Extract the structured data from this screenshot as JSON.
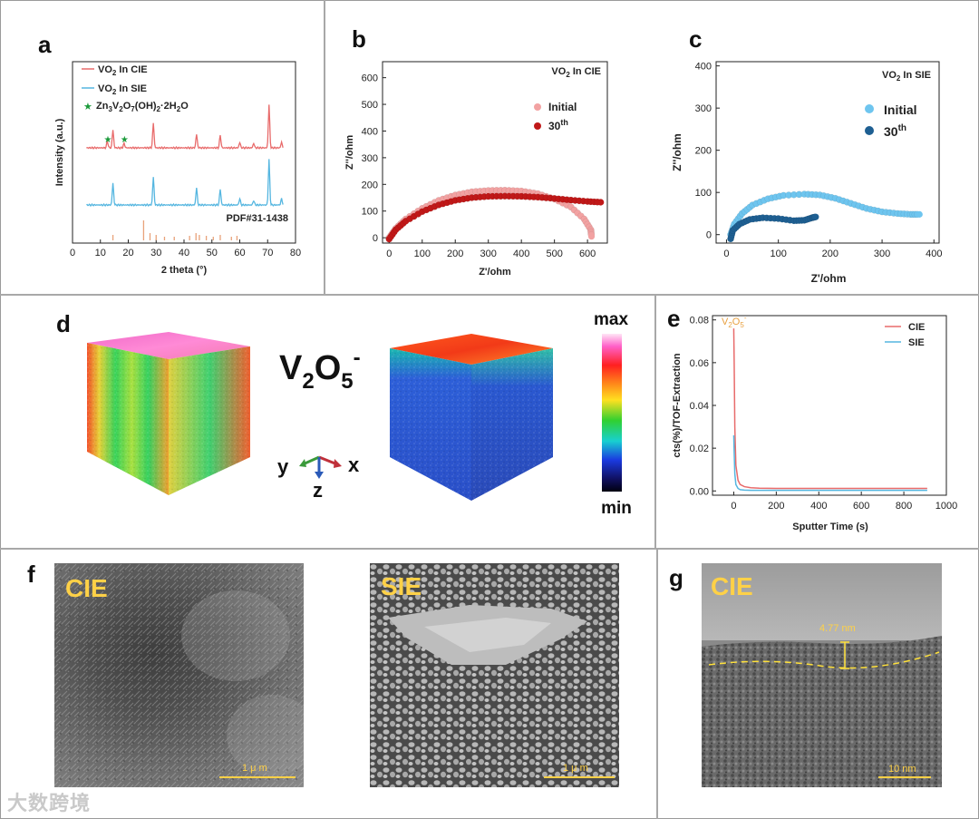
{
  "panels": {
    "a": {
      "label": "a"
    },
    "b": {
      "label": "b"
    },
    "c": {
      "label": "c"
    },
    "d": {
      "label": "d"
    },
    "e": {
      "label": "e"
    },
    "f": {
      "label": "f"
    },
    "g": {
      "label": "g"
    }
  },
  "colors": {
    "cie": "#e86b6b",
    "sie": "#55b6e0",
    "star": "#1a9a3a",
    "pdf_tick": "#e8a27a",
    "b_initial": "#f2a2a2",
    "b_30": "#c01818",
    "c_initial": "#6ec5ef",
    "c_30": "#1e5f92",
    "yellow": "#ffd147"
  },
  "chart_data": [
    {
      "id": "a",
      "type": "line",
      "title": "",
      "xlabel": "2 theta (°)",
      "ylabel": "Intensity (a.u.)",
      "xlim": [
        0,
        80
      ],
      "xticks": [
        "0",
        "10",
        "20",
        "30",
        "40",
        "50",
        "60",
        "70",
        "80"
      ],
      "legend": [
        {
          "name": "VO",
          "sub": "2",
          "rest": " In CIE"
        },
        {
          "name": "VO",
          "sub": "2",
          "rest": " In SIE"
        },
        {
          "name": "Zn3V2O7(OH)2·2H2O"
        }
      ],
      "pdf_label": "PDF#31-1438",
      "series": [
        {
          "name": "VO2 In CIE",
          "peaks": [
            [
              14.5,
              40
            ],
            [
              12.5,
              15
            ],
            [
              18.5,
              10
            ],
            [
              29,
              55
            ],
            [
              44.5,
              30
            ],
            [
              53,
              28
            ],
            [
              60,
              12
            ],
            [
              65,
              10
            ],
            [
              70.5,
              95
            ],
            [
              75,
              12
            ]
          ]
        },
        {
          "name": "VO2 In SIE",
          "peaks": [
            [
              14.5,
              48
            ],
            [
              29,
              62
            ],
            [
              44.5,
              38
            ],
            [
              53,
              35
            ],
            [
              60,
              14
            ],
            [
              65,
              10
            ],
            [
              70.5,
              100
            ],
            [
              75,
              14
            ]
          ]
        }
      ],
      "star_positions_deg": [
        12.5,
        18.5
      ],
      "pdf_ticks": [
        [
          14.5,
          6
        ],
        [
          25.5,
          22
        ],
        [
          27.8,
          8
        ],
        [
          30,
          6
        ],
        [
          33,
          4
        ],
        [
          36.5,
          4
        ],
        [
          42,
          5
        ],
        [
          44.3,
          8
        ],
        [
          45.5,
          6
        ],
        [
          48,
          5
        ],
        [
          50.5,
          4
        ],
        [
          53,
          6
        ],
        [
          57,
          4
        ],
        [
          59,
          5
        ]
      ]
    },
    {
      "id": "b",
      "type": "scatter",
      "title_main": "VO",
      "title_sub": "2",
      "title_rest": " In CIE",
      "xlabel": "Z'/ohm",
      "ylabel": "Z''/ohm",
      "xlim": [
        -20,
        660
      ],
      "ylim": [
        -20,
        660
      ],
      "xticks": [
        0,
        100,
        200,
        300,
        400,
        500,
        600
      ],
      "yticks": [
        0,
        100,
        200,
        300,
        400,
        500,
        600
      ],
      "legend": [
        "Initial",
        "30"
      ],
      "legend_sup": "th",
      "series": [
        {
          "name": "Initial",
          "points": [
            [
              0,
              0
            ],
            [
              20,
              35
            ],
            [
              50,
              70
            ],
            [
              100,
              110
            ],
            [
              150,
              140
            ],
            [
              200,
              160
            ],
            [
              250,
              172
            ],
            [
              300,
              177
            ],
            [
              350,
              178
            ],
            [
              400,
              175
            ],
            [
              450,
              165
            ],
            [
              500,
              145
            ],
            [
              550,
              115
            ],
            [
              590,
              70
            ],
            [
              610,
              30
            ],
            [
              612,
              5
            ]
          ]
        },
        {
          "name": "30th",
          "points": [
            [
              0,
              -5
            ],
            [
              20,
              30
            ],
            [
              50,
              62
            ],
            [
              100,
              98
            ],
            [
              150,
              123
            ],
            [
              200,
              140
            ],
            [
              250,
              150
            ],
            [
              300,
              155
            ],
            [
              350,
              156
            ],
            [
              400,
              155
            ],
            [
              450,
              152
            ],
            [
              500,
              147
            ],
            [
              550,
              141
            ],
            [
              600,
              136
            ],
            [
              640,
              133
            ]
          ]
        }
      ]
    },
    {
      "id": "c",
      "type": "scatter",
      "title_main": "VO",
      "title_sub": "2",
      "title_rest": " In SIE",
      "xlabel": "Z'/ohm",
      "ylabel": "Z''/ohm",
      "xlim": [
        -20,
        410
      ],
      "ylim": [
        -20,
        410
      ],
      "xticks": [
        0,
        100,
        200,
        300,
        400
      ],
      "yticks": [
        0,
        100,
        200,
        300,
        400
      ],
      "legend": [
        "Initial",
        "30"
      ],
      "legend_sup": "th",
      "series": [
        {
          "name": "Initial",
          "points": [
            [
              8,
              0
            ],
            [
              15,
              25
            ],
            [
              30,
              50
            ],
            [
              50,
              70
            ],
            [
              80,
              85
            ],
            [
              110,
              93
            ],
            [
              150,
              96
            ],
            [
              180,
              94
            ],
            [
              210,
              86
            ],
            [
              240,
              74
            ],
            [
              270,
              62
            ],
            [
              300,
              54
            ],
            [
              330,
              50
            ],
            [
              355,
              48
            ],
            [
              372,
              48
            ]
          ]
        },
        {
          "name": "30th",
          "points": [
            [
              8,
              -10
            ],
            [
              12,
              10
            ],
            [
              25,
              25
            ],
            [
              45,
              36
            ],
            [
              70,
              40
            ],
            [
              100,
              38
            ],
            [
              130,
              33
            ],
            [
              150,
              34
            ],
            [
              165,
              40
            ],
            [
              172,
              42
            ]
          ]
        }
      ]
    },
    {
      "id": "e",
      "type": "line",
      "xlabel": "Sputter Time (s)",
      "ylabel": "cts(%)/TOF-Extraction",
      "xlim": [
        -100,
        1000
      ],
      "ylim": [
        -0.002,
        0.082
      ],
      "xticks": [
        0,
        200,
        400,
        600,
        800,
        1000
      ],
      "yticks": [
        "0.00",
        "0.02",
        "0.04",
        "0.06",
        "0.08"
      ],
      "annotation_main": "V",
      "annotation_sub1": "2",
      "annotation_mid": "O",
      "annotation_sub2": "5",
      "annotation_sup": "-",
      "legend": [
        "CIE",
        "SIE"
      ],
      "series": [
        {
          "name": "CIE",
          "x": [
            0,
            2,
            5,
            10,
            20,
            30,
            50,
            80,
            120,
            200,
            400,
            600,
            910
          ],
          "values": [
            0.076,
            0.06,
            0.03,
            0.012,
            0.005,
            0.003,
            0.002,
            0.0015,
            0.0013,
            0.0012,
            0.0012,
            0.0012,
            0.0012
          ]
        },
        {
          "name": "SIE",
          "x": [
            0,
            2,
            5,
            10,
            20,
            30,
            50,
            80,
            120,
            200,
            400,
            600,
            910
          ],
          "values": [
            0.026,
            0.018,
            0.008,
            0.003,
            0.0012,
            0.0006,
            0.0004,
            0.0003,
            0.0003,
            0.0003,
            0.0003,
            0.0003,
            0.0003
          ]
        }
      ]
    }
  ],
  "panel_d": {
    "species_main": "V",
    "species_sub1": "2",
    "species_mid": "O",
    "species_sub2": "5",
    "species_sup": "-",
    "colorbar_max": "max",
    "colorbar_min": "min",
    "axis_x": "x",
    "axis_y": "y",
    "axis_z": "z"
  },
  "panel_f": {
    "left_label": "CIE",
    "right_label": "SIE",
    "scalebar": "1 μ m"
  },
  "panel_g": {
    "label": "CIE",
    "thickness": "4.77 nm",
    "scalebar": "10 nm"
  },
  "watermark": "大数跨境"
}
